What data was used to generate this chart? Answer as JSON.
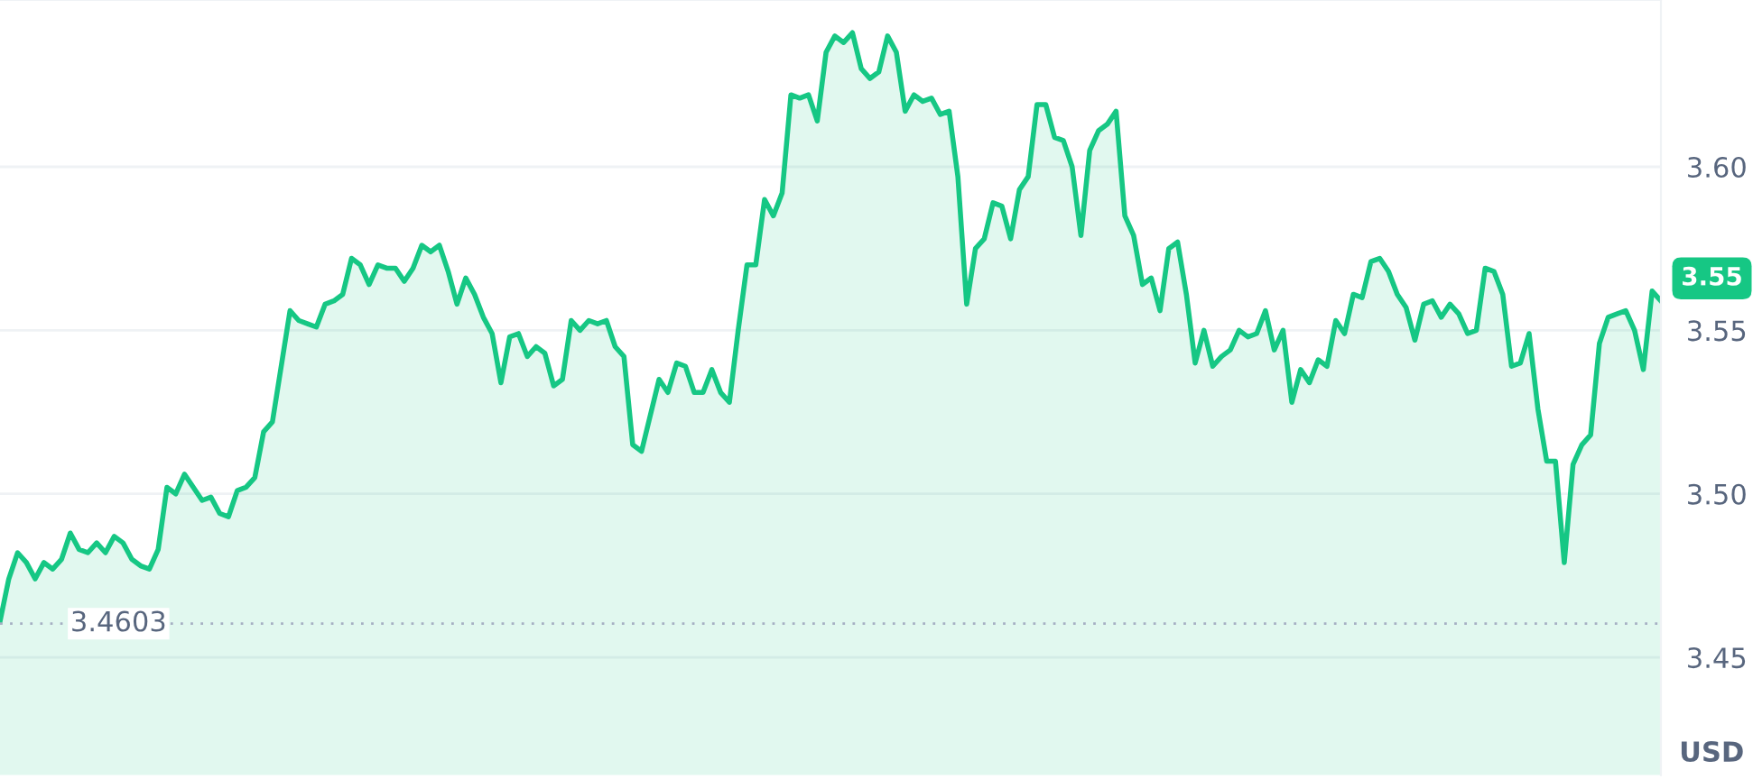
{
  "chart_data": {
    "type": "area",
    "categories": [
      null,
      null,
      null,
      null,
      null,
      null,
      null,
      null,
      null,
      null,
      null,
      null,
      null,
      null,
      null,
      null,
      null,
      null,
      null,
      null,
      null,
      null,
      null,
      null,
      null,
      null,
      null,
      null,
      null,
      null,
      null,
      null,
      null,
      null,
      null,
      null,
      null,
      null,
      null,
      null,
      null,
      null,
      null,
      null,
      null,
      null,
      null,
      null,
      null,
      null,
      null,
      null,
      null,
      null,
      null,
      null,
      null,
      null,
      null,
      null,
      null,
      null,
      null,
      null,
      null,
      null,
      null,
      null,
      null,
      null,
      null,
      null,
      null,
      null,
      null,
      null,
      null,
      null,
      null,
      null,
      null,
      null,
      null,
      null,
      null,
      null,
      null,
      null,
      null,
      null,
      null,
      null,
      null,
      null,
      null,
      null,
      null,
      null,
      null,
      null,
      null,
      null,
      null,
      null,
      null,
      null,
      null,
      null,
      null,
      null,
      null,
      null,
      null,
      null,
      null,
      null,
      null,
      null,
      null,
      null,
      null,
      null,
      null,
      null,
      null,
      null,
      null,
      null,
      null,
      null,
      null,
      null,
      null,
      null,
      null,
      null,
      null,
      null,
      null,
      null,
      null,
      null,
      null,
      null,
      null,
      null,
      null,
      null,
      null,
      null,
      null,
      null,
      null,
      null,
      null,
      null,
      null,
      null,
      null,
      null,
      null,
      null,
      null,
      null,
      null,
      null,
      null,
      null,
      null,
      null,
      null,
      null,
      null,
      null,
      null,
      null,
      null,
      null,
      null,
      null,
      null,
      null,
      null,
      null,
      null,
      null,
      null,
      null,
      null,
      null
    ],
    "series": [
      {
        "color": "#16c784",
        "values": [
          3.461,
          3.474,
          3.482,
          3.479,
          3.474,
          3.479,
          3.477,
          3.48,
          3.488,
          3.483,
          3.482,
          3.485,
          3.482,
          3.487,
          3.485,
          3.48,
          3.478,
          3.477,
          3.483,
          3.502,
          3.5,
          3.506,
          3.502,
          3.498,
          3.499,
          3.494,
          3.493,
          3.501,
          3.502,
          3.505,
          3.519,
          3.522,
          3.539,
          3.556,
          3.553,
          3.552,
          3.551,
          3.558,
          3.559,
          3.561,
          3.572,
          3.57,
          3.564,
          3.57,
          3.569,
          3.569,
          3.565,
          3.569,
          3.576,
          3.574,
          3.576,
          3.568,
          3.558,
          3.566,
          3.561,
          3.554,
          3.549,
          3.534,
          3.548,
          3.549,
          3.542,
          3.545,
          3.543,
          3.533,
          3.535,
          3.553,
          3.55,
          3.553,
          3.552,
          3.553,
          3.545,
          3.542,
          3.515,
          3.513,
          3.524,
          3.535,
          3.531,
          3.54,
          3.539,
          3.531,
          3.531,
          3.538,
          3.531,
          3.528,
          3.55,
          3.57,
          3.57,
          3.59,
          3.585,
          3.592,
          3.622,
          3.621,
          3.622,
          3.614,
          3.635,
          3.64,
          3.638,
          3.641,
          3.63,
          3.627,
          3.629,
          3.64,
          3.635,
          3.617,
          3.622,
          3.62,
          3.621,
          3.616,
          3.617,
          3.597,
          3.558,
          3.575,
          3.578,
          3.589,
          3.588,
          3.578,
          3.593,
          3.597,
          3.619,
          3.619,
          3.609,
          3.608,
          3.6,
          3.579,
          3.605,
          3.611,
          3.613,
          3.617,
          3.585,
          3.579,
          3.564,
          3.566,
          3.556,
          3.575,
          3.577,
          3.561,
          3.54,
          3.55,
          3.539,
          3.542,
          3.544,
          3.55,
          3.548,
          3.549,
          3.556,
          3.544,
          3.55,
          3.528,
          3.538,
          3.534,
          3.541,
          3.539,
          3.553,
          3.549,
          3.561,
          3.56,
          3.571,
          3.572,
          3.568,
          3.561,
          3.557,
          3.547,
          3.558,
          3.559,
          3.554,
          3.558,
          3.555,
          3.549,
          3.55,
          3.569,
          3.568,
          3.561,
          3.539,
          3.54,
          3.549,
          3.526,
          3.51,
          3.51,
          3.479,
          3.509,
          3.515,
          3.518,
          3.546,
          3.554,
          3.555,
          3.556,
          3.55,
          3.538,
          3.562,
          3.559
        ]
      }
    ],
    "ylim": [
      3.414,
      3.651
    ],
    "yticks": [
      {
        "value": 3.45,
        "label": "3.45"
      },
      {
        "value": 3.5,
        "label": "3.50"
      },
      {
        "value": 3.55,
        "label": "3.55"
      },
      {
        "value": 3.6,
        "label": "3.60"
      }
    ],
    "tick_labels": "y",
    "grid": "y",
    "ref_lines": [
      {
        "axis": "y",
        "value": 3.4603,
        "label": "3.4603",
        "color": "#a6b0c3",
        "line_style": "dotted"
      }
    ],
    "annotations": [
      "3.55",
      "USD"
    ]
  }
}
